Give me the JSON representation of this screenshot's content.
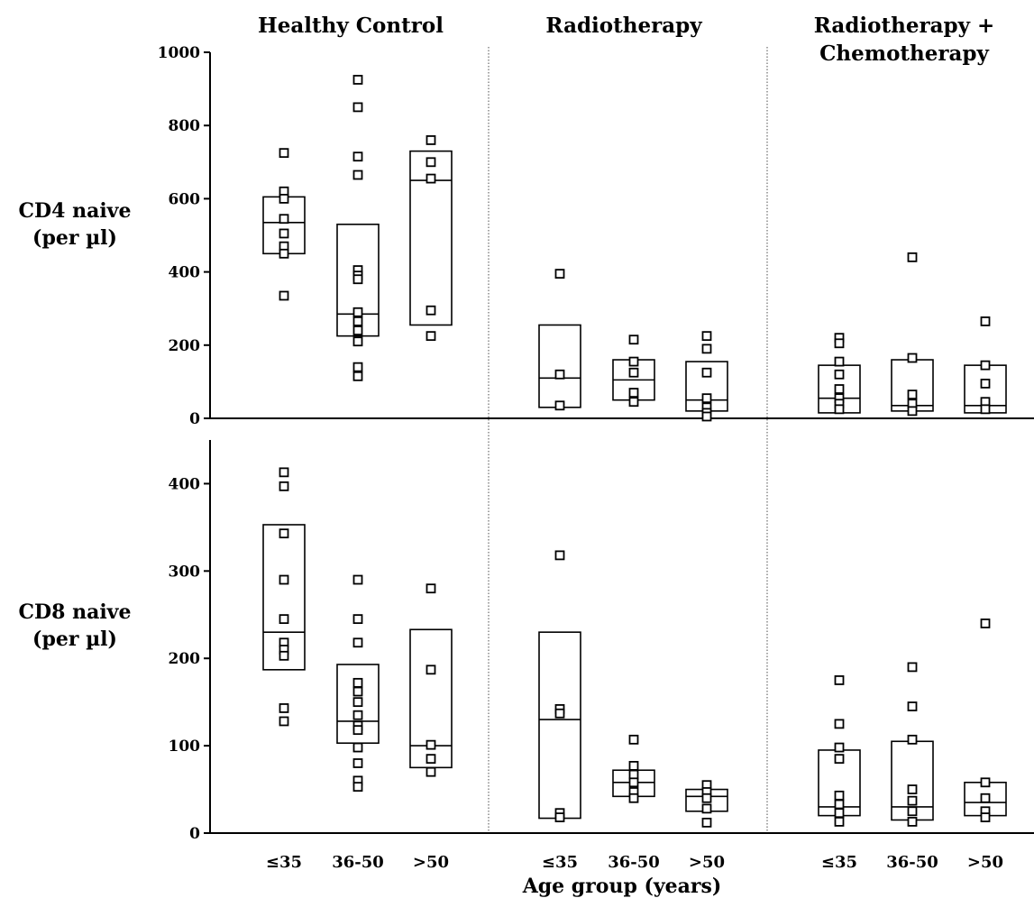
{
  "chart_data": {
    "type": "scatter",
    "group_titles": [
      "Healthy Control",
      "Radiotherapy",
      "Radiotherapy + Chemotherapy"
    ],
    "group_titles_lines": [
      [
        "Healthy Control"
      ],
      [
        "Radiotherapy"
      ],
      [
        "Radiotherapy +",
        "Chemotherapy"
      ]
    ],
    "age_groups": [
      "≤35",
      "36-50",
      ">50"
    ],
    "xlabel": "Age group (years)",
    "panels": [
      {
        "ylabel_lines": [
          "CD4 naive",
          "(per µl)"
        ],
        "ylim": [
          0,
          1000
        ],
        "yticks": [
          0,
          200,
          400,
          600,
          800,
          1000
        ],
        "data": [
          [
            {
              "points": [
                725,
                620,
                600,
                545,
                505,
                470,
                450,
                335
              ],
              "box": [
                450,
                535,
                605
              ]
            },
            {
              "points": [
                925,
                850,
                715,
                665,
                405,
                390,
                380,
                290,
                265,
                240,
                210,
                140,
                115
              ],
              "box": [
                225,
                285,
                530
              ]
            },
            {
              "points": [
                760,
                700,
                655,
                295,
                225
              ],
              "box": [
                255,
                650,
                730
              ]
            }
          ],
          [
            {
              "points": [
                395,
                120,
                35
              ],
              "box": [
                30,
                110,
                255
              ]
            },
            {
              "points": [
                215,
                155,
                125,
                70,
                45
              ],
              "box": [
                50,
                105,
                160
              ]
            },
            {
              "points": [
                225,
                190,
                125,
                55,
                30,
                15,
                5
              ],
              "box": [
                20,
                50,
                155
              ]
            }
          ],
          [
            {
              "points": [
                220,
                205,
                155,
                120,
                80,
                55,
                40,
                25
              ],
              "box": [
                15,
                55,
                145
              ]
            },
            {
              "points": [
                440,
                165,
                65,
                40,
                20
              ],
              "box": [
                20,
                35,
                160
              ]
            },
            {
              "points": [
                265,
                145,
                95,
                45,
                25
              ],
              "box": [
                15,
                35,
                145
              ]
            }
          ]
        ]
      },
      {
        "ylabel_lines": [
          "CD8 naive",
          "(per µl)"
        ],
        "ylim": [
          0,
          450
        ],
        "yticks": [
          0,
          100,
          200,
          300,
          400
        ],
        "data": [
          [
            {
              "points": [
                413,
                397,
                343,
                290,
                245,
                218,
                210,
                203,
                143,
                128
              ],
              "box": [
                187,
                230,
                353
              ]
            },
            {
              "points": [
                290,
                245,
                218,
                172,
                162,
                150,
                135,
                123,
                118,
                98,
                80,
                60,
                53
              ],
              "box": [
                103,
                128,
                193
              ]
            },
            {
              "points": [
                280,
                187,
                101,
                85,
                70
              ],
              "box": [
                75,
                100,
                233
              ]
            }
          ],
          [
            {
              "points": [
                318,
                142,
                137,
                23,
                18
              ],
              "box": [
                17,
                130,
                230
              ]
            },
            {
              "points": [
                107,
                77,
                67,
                58,
                47,
                40
              ],
              "box": [
                42,
                58,
                72
              ]
            },
            {
              "points": [
                55,
                47,
                40,
                28,
                12
              ],
              "box": [
                25,
                42,
                50
              ]
            }
          ],
          [
            {
              "points": [
                175,
                125,
                98,
                85,
                43,
                33,
                23,
                13
              ],
              "box": [
                20,
                30,
                95
              ]
            },
            {
              "points": [
                190,
                145,
                107,
                50,
                37,
                25,
                13
              ],
              "box": [
                15,
                30,
                105
              ]
            },
            {
              "points": [
                240,
                58,
                40,
                25,
                18
              ],
              "box": [
                20,
                35,
                58
              ]
            }
          ]
        ]
      }
    ]
  }
}
